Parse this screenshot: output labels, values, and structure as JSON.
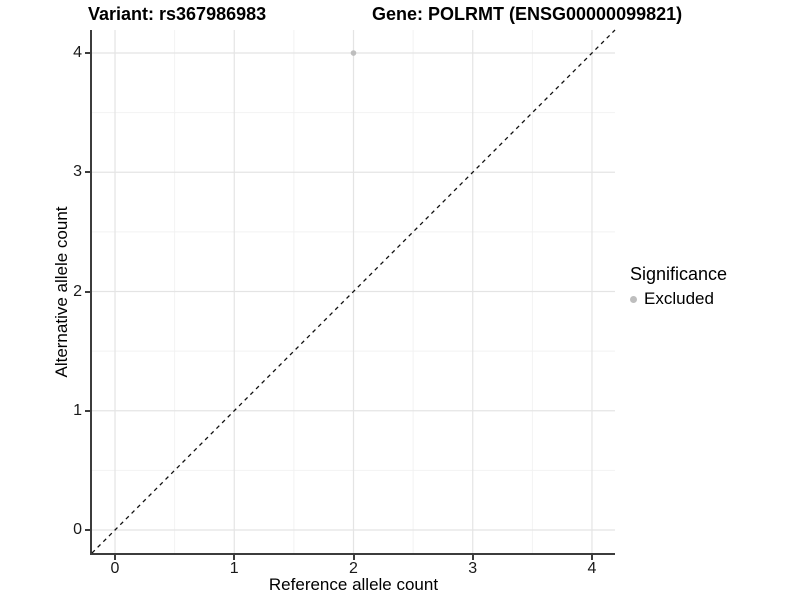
{
  "header": {
    "variant_title": "Variant: rs367986983",
    "gene_title": "Gene: POLRMT (ENSG00000099821)"
  },
  "chart_data": {
    "type": "scatter",
    "title_left": "Variant: rs367986983",
    "title_right": "Gene: POLRMT (ENSG00000099821)",
    "xlabel": "Reference allele count",
    "ylabel": "Alternative allele count",
    "xlim": [
      -0.193,
      4.193
    ],
    "ylim": [
      -0.193,
      4.193
    ],
    "x_major_ticks": [
      0,
      1,
      2,
      3,
      4
    ],
    "y_major_ticks": [
      0,
      1,
      2,
      3,
      4
    ],
    "x_minor_ticks": [
      0.5,
      1.5,
      2.5,
      3.5
    ],
    "y_minor_ticks": [
      0.5,
      1.5,
      2.5,
      3.5
    ],
    "grid": true,
    "reference_line": {
      "kind": "identity y=x",
      "style": "dashed",
      "color": "#111111"
    },
    "series": [
      {
        "name": "Excluded",
        "color": "#bebebe",
        "points": [
          {
            "x": 2,
            "y": 4
          }
        ]
      }
    ],
    "legend": {
      "position": "right",
      "title": "Significance",
      "items": [
        {
          "label": "Excluded",
          "color": "#bebebe"
        }
      ]
    }
  },
  "colors": {
    "background": "#ffffff",
    "major_grid": "#e4e4e4",
    "minor_grid": "#f2f2f2",
    "axis_line": "#3c3c3c",
    "point": "#bebebe"
  }
}
